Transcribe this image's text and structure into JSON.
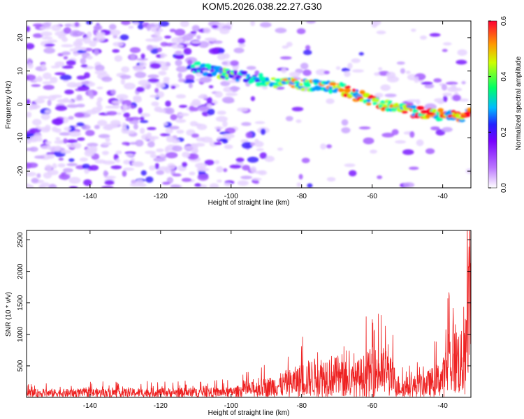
{
  "title": "KOM5.2026.038.22.27.G30",
  "colors": {
    "frame": "#000000",
    "snr_line": "#ee2222",
    "background": "#ffffff"
  },
  "chart_data": [
    {
      "type": "heatmap",
      "name": "spectrogram",
      "xlabel": "Height of straight line (km)",
      "ylabel": "Frequency (Hz)",
      "xlim": [
        -158,
        -32
      ],
      "ylim": [
        -25,
        25
      ],
      "xticks": [
        -140,
        -120,
        -100,
        -80,
        -60,
        -40
      ],
      "yticks": [
        20,
        10,
        0,
        -10,
        -20
      ],
      "colorbar": {
        "label": "Normalized spectral amplitude",
        "range": [
          0.0,
          0.6
        ],
        "ticks": [
          "0.0",
          "0.2",
          "0.4",
          "0.6"
        ],
        "colormap": [
          "#ffffff",
          "#9933ff",
          "#3333ff",
          "#00ccff",
          "#00ff66",
          "#ffff00",
          "#ff8800",
          "#ff0000"
        ]
      },
      "ridge": {
        "description_points": [
          {
            "x": -110,
            "freq": 11
          },
          {
            "x": -90,
            "freq": 7
          },
          {
            "x": -80,
            "freq": 6
          },
          {
            "x": -70,
            "freq": 5
          },
          {
            "x": -60,
            "freq": 1
          },
          {
            "x": -50,
            "freq": -2
          },
          {
            "x": -40,
            "freq": -3
          },
          {
            "x": -35,
            "freq": -4
          },
          {
            "x": -32,
            "freq": -1
          }
        ]
      }
    },
    {
      "type": "line",
      "name": "snr",
      "xlabel": "Height of straight line (km)",
      "ylabel": "SNR (10 * v/v)",
      "xlim": [
        -158,
        -32
      ],
      "ylim": [
        0,
        2650
      ],
      "xticks": [
        -140,
        -120,
        -100,
        -80,
        -60,
        -40
      ],
      "yticks": [
        500,
        1000,
        1500,
        2000,
        2500
      ],
      "envelope": [
        {
          "x": -158,
          "level": 130
        },
        {
          "x": -100,
          "level": 160
        },
        {
          "x": -92,
          "level": 280
        },
        {
          "x": -85,
          "level": 400
        },
        {
          "x": -78,
          "level": 600
        },
        {
          "x": -72,
          "level": 700
        },
        {
          "x": -66,
          "level": 500
        },
        {
          "x": -60,
          "level": 800
        },
        {
          "x": -56,
          "level": 800
        },
        {
          "x": -52,
          "level": 300
        },
        {
          "x": -45,
          "level": 400
        },
        {
          "x": -40,
          "level": 600
        },
        {
          "x": -37,
          "level": 1300
        },
        {
          "x": -34,
          "level": 1000
        },
        {
          "x": -32,
          "level": 2300
        }
      ]
    }
  ]
}
